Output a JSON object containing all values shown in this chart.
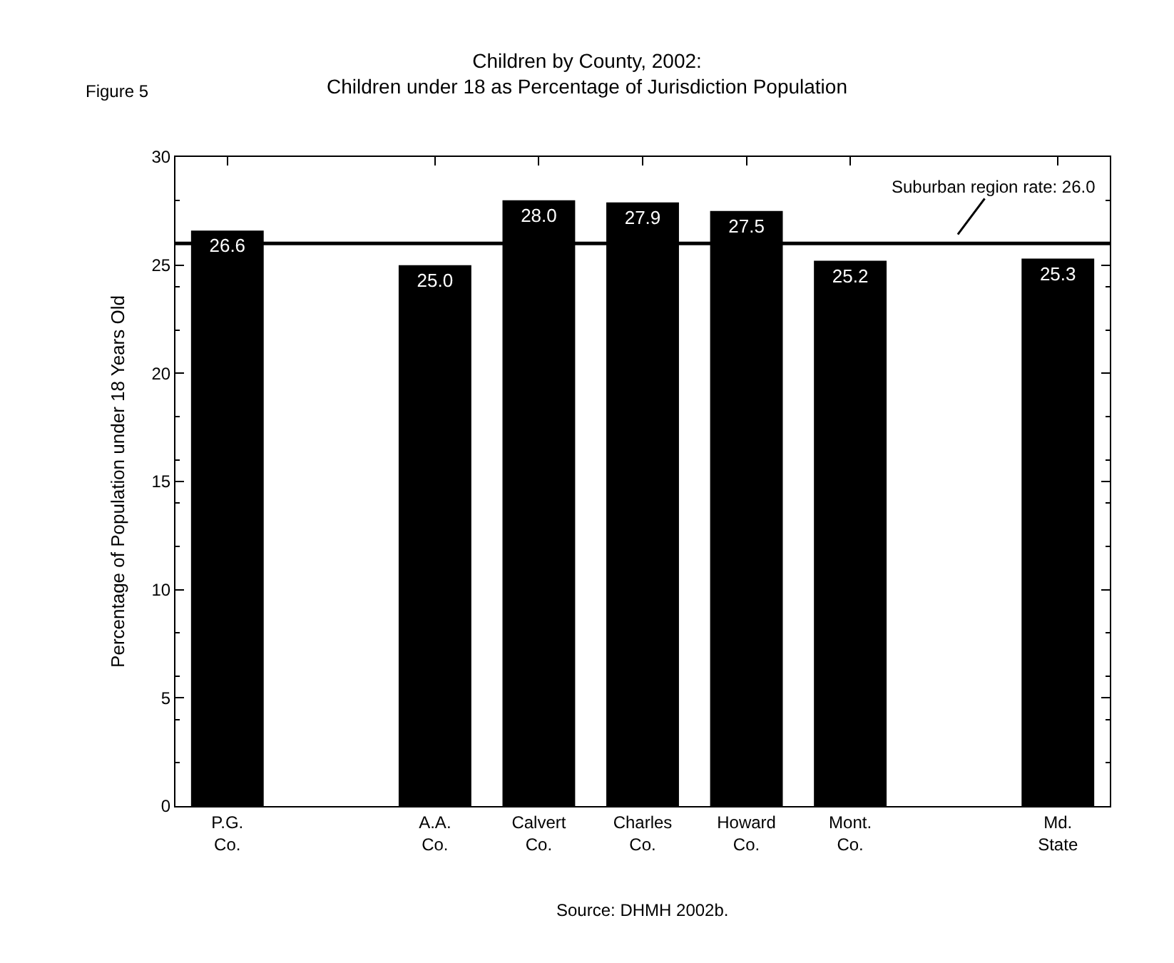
{
  "chart_data": {
    "type": "bar",
    "title": "Children by County, 2002:\nChildren under 18 as Percentage of Jurisdiction Population",
    "ylabel": "Percentage of Population under 18 Years Old",
    "categories": [
      "P.G.\nCo.",
      null,
      "A.A.\nCo.",
      "Calvert\nCo.",
      "Charles\nCo.",
      "Howard\nCo.",
      "Mont.\nCo.",
      null,
      "Md.\nState"
    ],
    "values": [
      26.6,
      null,
      25.0,
      28.0,
      27.9,
      27.5,
      25.2,
      null,
      25.3
    ],
    "value_labels": [
      "26.6",
      null,
      "25.0",
      "28.0",
      "27.9",
      "27.5",
      "25.2",
      null,
      "25.3"
    ],
    "color": "#000000",
    "ylim": [
      0,
      30
    ],
    "yticks": [
      0,
      5,
      10,
      15,
      20,
      25,
      30
    ],
    "ref_lines": [
      {
        "axis": "y",
        "value": 26.0,
        "label": "Suburban region rate: 26.0",
        "color": "#000000"
      }
    ],
    "annotations": [
      "Figure 5",
      "Source: DHMH 2002b."
    ],
    "tick_labels": [
      "x",
      "y"
    ]
  }
}
